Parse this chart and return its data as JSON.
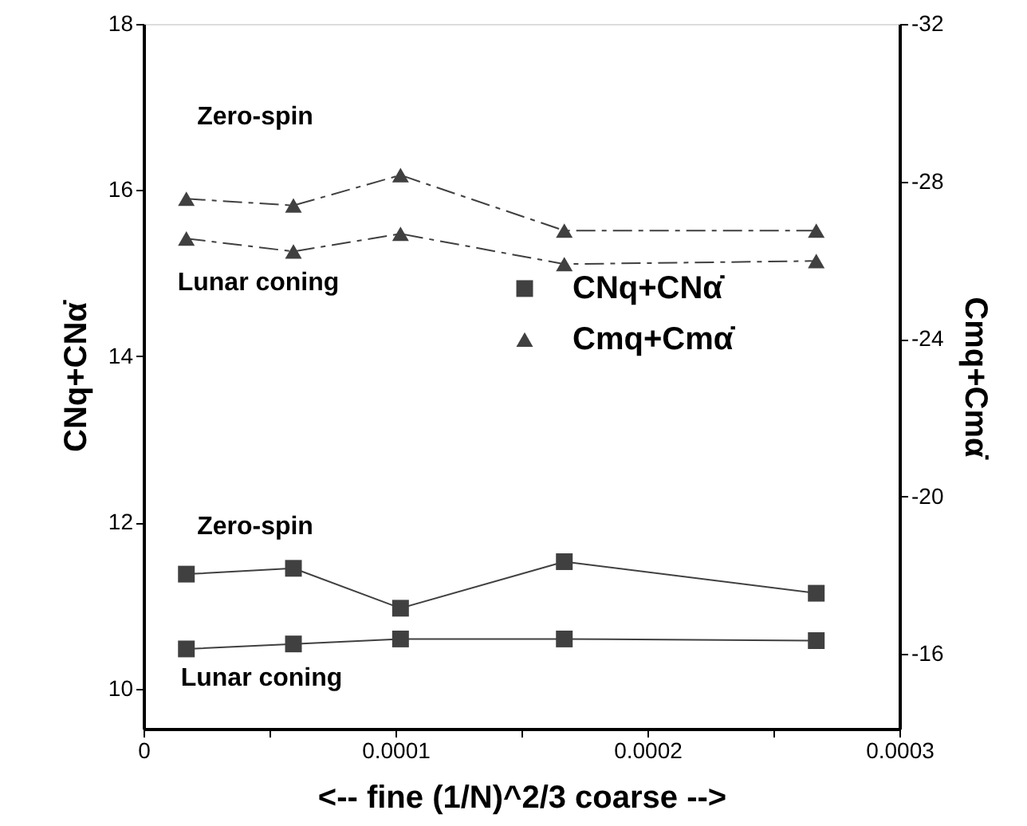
{
  "chart_data": {
    "type": "line",
    "xlabel": "<-- fine        (1/N)^2/3        coarse -->",
    "ylabel": "CNq+CNα̇",
    "y2label": "Cmq+Cmα̇",
    "x": [
      1.7e-05,
      5.95e-05,
      0.000102,
      0.000167,
      0.000267
    ],
    "series": [
      {
        "name": "CNq+CNα̇",
        "color": "#404040",
        "values": [
          11.38,
          11.45,
          10.97,
          11.53,
          11.15
        ],
        "marker": "square",
        "line_style": "solid"
      },
      {
        "color": "#404040",
        "values": [
          10.48,
          10.54,
          10.6,
          10.6,
          10.58
        ],
        "marker": "square",
        "line_style": "solid"
      },
      {
        "name": "Cmq+Cmα̇",
        "color": "#404040",
        "values": [
          -27.56,
          -27.39,
          -28.16,
          -26.75,
          -26.75
        ],
        "marker": "triangle",
        "line_style": "dashdot",
        "axis": "y2"
      },
      {
        "color": "#404040",
        "values": [
          -26.55,
          -26.22,
          -26.67,
          -25.9,
          -25.98
        ],
        "marker": "triangle",
        "line_style": "dashdot",
        "axis": "y2"
      }
    ],
    "xlim": [
      0,
      0.0003
    ],
    "xticks": [
      0,
      {
        "value": 5e-05,
        "label": null
      },
      0.0001,
      {
        "value": 0.00015,
        "label": null
      },
      0.0002,
      {
        "value": 0.00025,
        "label": null
      },
      0.0003
    ],
    "ylim": [
      9.52,
      18
    ],
    "yticks": [
      10,
      12,
      14,
      16,
      18
    ],
    "y2lim": [
      -14.1,
      -32
    ],
    "y2ticks": [
      -32,
      -28,
      -24,
      -20,
      -16
    ],
    "annotations": [
      "Zero-spin",
      "Lunar coning",
      "Zero-spin",
      "Lunar coning"
    ],
    "legend": "right",
    "grid": false
  }
}
